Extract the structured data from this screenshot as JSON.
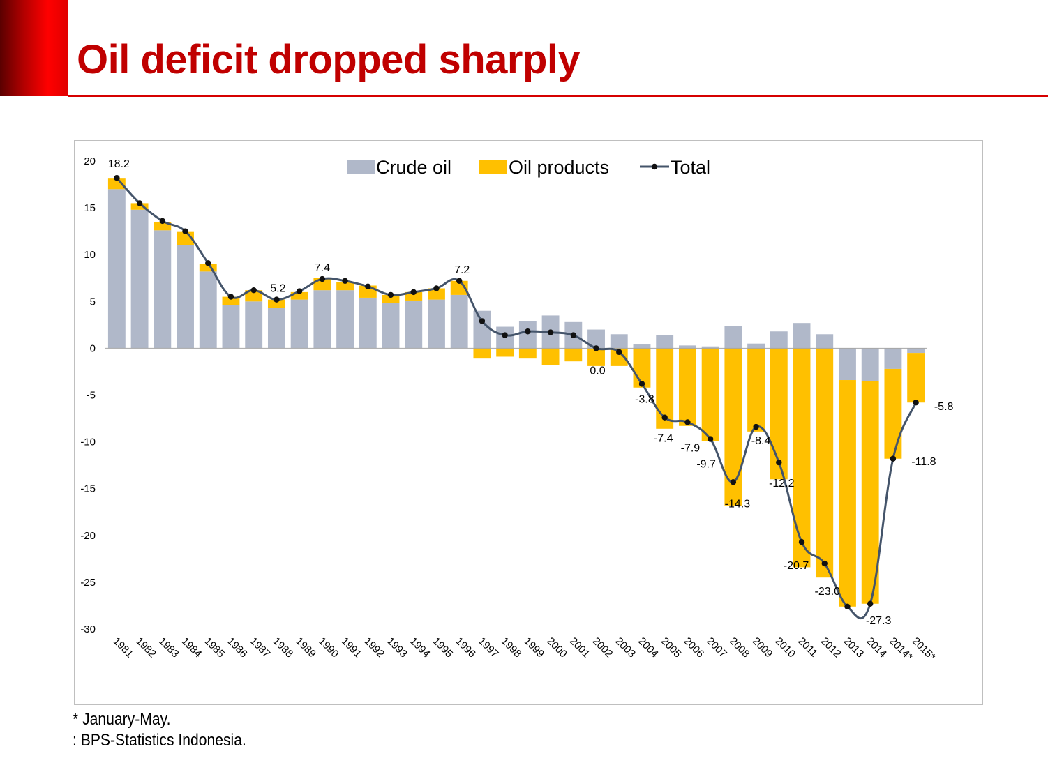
{
  "page": {
    "title": "Oil deficit dropped sharply",
    "accent_color": "#d60000",
    "footnotes": [
      "* January-May.",
      ": BPS-Statistics Indonesia."
    ]
  },
  "chart_data": {
    "type": "bar",
    "stacked": true,
    "title": "",
    "xlabel": "",
    "ylabel": "",
    "ylim": [
      -30,
      20
    ],
    "yticks": [
      20,
      15,
      10,
      5,
      0,
      -5,
      -10,
      -15,
      -20,
      -25,
      -30
    ],
    "grid": false,
    "legend_position": "top-center",
    "categories": [
      "1981",
      "1982",
      "1983",
      "1984",
      "1985",
      "1986",
      "1987",
      "1988",
      "1989",
      "1990",
      "1991",
      "1992",
      "1993",
      "1994",
      "1995",
      "1996",
      "1997",
      "1998",
      "1999",
      "2000",
      "2001",
      "2002",
      "2003",
      "2004",
      "2005",
      "2006",
      "2007",
      "2008",
      "2009",
      "2010",
      "2011",
      "2012",
      "2013",
      "2014",
      "2014*",
      "2015*"
    ],
    "series": [
      {
        "name": "Crude oil",
        "kind": "bar",
        "color": "#b0b8c9",
        "values": [
          17.0,
          14.8,
          12.6,
          11.0,
          8.2,
          4.6,
          5.0,
          4.3,
          5.2,
          6.2,
          6.2,
          5.4,
          4.8,
          5.1,
          5.2,
          5.7,
          4.0,
          2.3,
          2.9,
          3.5,
          2.8,
          2.0,
          1.5,
          0.4,
          1.4,
          0.3,
          0.2,
          2.4,
          0.5,
          1.8,
          2.7,
          1.5,
          -3.4,
          -3.5,
          -2.2,
          -0.5
        ]
      },
      {
        "name": "Oil products",
        "kind": "bar",
        "color": "#ffc000",
        "values": [
          1.2,
          0.7,
          0.9,
          1.5,
          0.8,
          0.9,
          1.2,
          0.9,
          0.8,
          1.3,
          0.9,
          1.3,
          0.9,
          0.9,
          1.2,
          1.5,
          -1.1,
          -0.9,
          -1.1,
          -1.8,
          -1.4,
          -1.9,
          -1.9,
          -4.2,
          -8.6,
          -8.3,
          -9.9,
          -16.8,
          -8.9,
          -14.0,
          -23.4,
          -24.5,
          -24.2,
          -23.8,
          -9.6,
          -5.3
        ]
      },
      {
        "name": "Total",
        "kind": "line",
        "color": "#44546a",
        "values": [
          18.2,
          15.5,
          13.6,
          12.5,
          9.1,
          5.5,
          6.2,
          5.2,
          6.1,
          7.4,
          7.2,
          6.6,
          5.7,
          6.0,
          6.4,
          7.2,
          2.9,
          1.4,
          1.8,
          1.7,
          1.4,
          0.0,
          -0.4,
          -3.8,
          -7.4,
          -7.9,
          -9.7,
          -14.3,
          -8.4,
          -12.2,
          -20.7,
          -23.0,
          -27.6,
          -27.3,
          -11.8,
          -5.8
        ]
      }
    ],
    "data_labels": [
      {
        "index": 0,
        "text": "18.2"
      },
      {
        "index": 7,
        "text": "5.2"
      },
      {
        "index": 9,
        "text": "7.4"
      },
      {
        "index": 15,
        "text": "7.2"
      },
      {
        "index": 21,
        "text": "0.0"
      },
      {
        "index": 23,
        "text": "-3.8"
      },
      {
        "index": 24,
        "text": "-7.4"
      },
      {
        "index": 25,
        "text": "-7.9"
      },
      {
        "index": 26,
        "text": "-9.7"
      },
      {
        "index": 27,
        "text": "-14.3"
      },
      {
        "index": 28,
        "text": "-8.4"
      },
      {
        "index": 29,
        "text": "-12.2"
      },
      {
        "index": 30,
        "text": "-20.7"
      },
      {
        "index": 31,
        "text": "-23.0"
      },
      {
        "index": 33,
        "text": "-27.3"
      },
      {
        "index": 34,
        "text": "-11.8"
      },
      {
        "index": 35,
        "text": "-5.8"
      }
    ]
  }
}
